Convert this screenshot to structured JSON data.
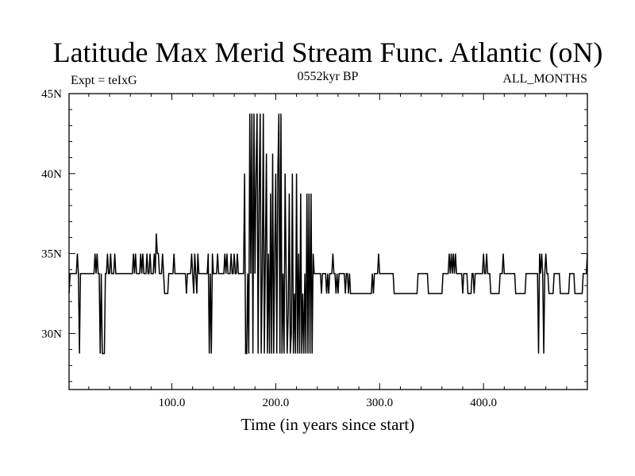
{
  "chart_data": {
    "type": "line",
    "title": "Latitude Max Merid Stream Func. Atlantic (oN)",
    "subtitle_left": "Expt = teIxG",
    "subtitle_center": "0552kyr BP",
    "subtitle_right": "ALL_MONTHS",
    "xlabel": "Time (in years since start)",
    "ylabel": "",
    "xlim": [
      1,
      500
    ],
    "ylim": [
      26.5,
      45
    ],
    "x_ticks": [
      {
        "value": 100,
        "label": "100.0"
      },
      {
        "value": 200,
        "label": "200.0"
      },
      {
        "value": 300,
        "label": "300.0"
      },
      {
        "value": 400,
        "label": "400.0"
      }
    ],
    "y_ticks": [
      {
        "value": 30,
        "label": "30N"
      },
      {
        "value": 35,
        "label": "35N"
      },
      {
        "value": 40,
        "label": "40N"
      },
      {
        "value": 45,
        "label": "45N"
      }
    ],
    "grid": false,
    "legend": "none",
    "line_color": "#000000",
    "series": [
      {
        "x": [
          1,
          2,
          3,
          4,
          5,
          6,
          7,
          8,
          9,
          10,
          11,
          12,
          13,
          14,
          15,
          16,
          17,
          18,
          19,
          20,
          21,
          22,
          23,
          24,
          25,
          26,
          27,
          28,
          29,
          30,
          31,
          32,
          33,
          34,
          35,
          36,
          37,
          38,
          39,
          40,
          41,
          42,
          43,
          44,
          45,
          46,
          47,
          48,
          49,
          50,
          51,
          52,
          53,
          54,
          55,
          56,
          57,
          58,
          59,
          60,
          61,
          62,
          63,
          64,
          65,
          66,
          67,
          68,
          69,
          70,
          71,
          72,
          73,
          74,
          75,
          76,
          77,
          78,
          79,
          80,
          81,
          82,
          83,
          84,
          85,
          86,
          87,
          88,
          89,
          90,
          91,
          92,
          93,
          94,
          95,
          96,
          97,
          98,
          99,
          100,
          101,
          102,
          103,
          104,
          105,
          106,
          107,
          108,
          109,
          110,
          111,
          112,
          113,
          114,
          115,
          116,
          117,
          118,
          119,
          120,
          121,
          122,
          123,
          124,
          125,
          126,
          127,
          128,
          129,
          130,
          131,
          132,
          133,
          134,
          135,
          136,
          137,
          138,
          139,
          140,
          141,
          142,
          143,
          144,
          145,
          146,
          147,
          148,
          149,
          150,
          151,
          152,
          153,
          154,
          155,
          156,
          157,
          158,
          159,
          160,
          161,
          162,
          163,
          164,
          165,
          166,
          167,
          168,
          169,
          170,
          171,
          172,
          173,
          174,
          175,
          176,
          177,
          178,
          179,
          180,
          181,
          182,
          183,
          184,
          185,
          186,
          187,
          188,
          189,
          190,
          191,
          192,
          193,
          194,
          195,
          196,
          197,
          198,
          199,
          200,
          201,
          202,
          203,
          204,
          205,
          206,
          207,
          208,
          209,
          210,
          211,
          212,
          213,
          214,
          215,
          216,
          217,
          218,
          219,
          220,
          221,
          222,
          223,
          224,
          225,
          226,
          227,
          228,
          229,
          230,
          231,
          232,
          233,
          234,
          235,
          236,
          237,
          238,
          239,
          240,
          241,
          242,
          243,
          244,
          245,
          246,
          247,
          248,
          249,
          250,
          251,
          252,
          253,
          254,
          255,
          256,
          257,
          258,
          259,
          260,
          261,
          262,
          263,
          264,
          265,
          266,
          267,
          268,
          269,
          270,
          271,
          272,
          273,
          274,
          275,
          276,
          277,
          278,
          279,
          280,
          281,
          282,
          283,
          284,
          285,
          286,
          287,
          288,
          289,
          290,
          291,
          292,
          293,
          294,
          295,
          296,
          297,
          298,
          299,
          300,
          301,
          302,
          303,
          304,
          305,
          306,
          307,
          308,
          309,
          310,
          311,
          312,
          313,
          314,
          315,
          316,
          317,
          318,
          319,
          320,
          321,
          322,
          323,
          324,
          325,
          326,
          327,
          328,
          329,
          330,
          331,
          332,
          333,
          334,
          335,
          336,
          337,
          338,
          339,
          340,
          341,
          342,
          343,
          344,
          345,
          346,
          347,
          348,
          349,
          350,
          351,
          352,
          353,
          354,
          355,
          356,
          357,
          358,
          359,
          360,
          361,
          362,
          363,
          364,
          365,
          366,
          367,
          368,
          369,
          370,
          371,
          372,
          373,
          374,
          375,
          376,
          377,
          378,
          379,
          380,
          381,
          382,
          383,
          384,
          385,
          386,
          387,
          388,
          389,
          390,
          391,
          392,
          393,
          394,
          395,
          396,
          397,
          398,
          399,
          400,
          401,
          402,
          403,
          404,
          405,
          406,
          407,
          408,
          409,
          410,
          411,
          412,
          413,
          414,
          415,
          416,
          417,
          418,
          419,
          420,
          421,
          422,
          423,
          424,
          425,
          426,
          427,
          428,
          429,
          430,
          431,
          432,
          433,
          434,
          435,
          436,
          437,
          438,
          439,
          440,
          441,
          442,
          443,
          444,
          445,
          446,
          447,
          448,
          449,
          450,
          451,
          452,
          453,
          454,
          455,
          456,
          457,
          458,
          459,
          460,
          461,
          462,
          463,
          464,
          465,
          466,
          467,
          468,
          469,
          470,
          471,
          472,
          473,
          474,
          475,
          476,
          477,
          478,
          479,
          480,
          481,
          482,
          483,
          484,
          485,
          486,
          487,
          488,
          489,
          490,
          491,
          492,
          493,
          494,
          495,
          496,
          497,
          498,
          499,
          500
        ],
        "y": [
          32.5,
          33.75,
          33.75,
          33.75,
          33.75,
          33.75,
          33.75,
          33.75,
          35,
          33.75,
          28.75,
          33.75,
          33.75,
          33.75,
          33.75,
          33.75,
          33.75,
          33.75,
          33.75,
          33.75,
          33.75,
          33.75,
          33.75,
          33.75,
          33.75,
          35,
          33.75,
          35,
          33.75,
          33.75,
          28.75,
          33.75,
          28.75,
          28.75,
          28.75,
          33.75,
          33.75,
          35,
          33.75,
          33.75,
          35,
          33.75,
          33.75,
          33.75,
          35,
          33.75,
          33.75,
          33.75,
          33.75,
          33.75,
          33.75,
          33.75,
          33.75,
          33.75,
          33.75,
          33.75,
          33.75,
          33.75,
          33.75,
          33.75,
          33.75,
          33.75,
          35,
          33.75,
          35,
          33.75,
          33.75,
          33.75,
          33.75,
          35,
          33.75,
          35,
          33.75,
          33.75,
          33.75,
          35,
          33.75,
          33.75,
          35,
          33.75,
          33.75,
          33.75,
          35,
          33.75,
          36.25,
          35,
          35,
          33.75,
          33.75,
          33.75,
          35,
          33.75,
          32.5,
          32.5,
          32.5,
          32.5,
          33.75,
          33.75,
          33.75,
          33.75,
          33.75,
          35,
          33.75,
          33.75,
          33.75,
          33.75,
          33.75,
          33.75,
          33.75,
          33.75,
          33.75,
          33.75,
          33.75,
          32.5,
          33.75,
          33.75,
          33.75,
          33.75,
          35,
          33.75,
          32.5,
          35,
          33.75,
          32.5,
          35,
          33.75,
          33.75,
          33.75,
          33.75,
          33.75,
          33.75,
          33.75,
          33.75,
          33.75,
          35,
          28.75,
          33.75,
          28.75,
          35,
          33.75,
          33.75,
          33.75,
          33.75,
          35,
          33.75,
          33.75,
          33.75,
          33.75,
          33.75,
          33.75,
          35,
          33.75,
          35,
          33.75,
          33.75,
          33.75,
          35,
          33.75,
          33.75,
          35,
          33.75,
          33.75,
          35,
          33.75,
          33.75,
          33.75,
          33.75,
          33.75,
          33.75,
          40,
          28.75,
          28.75,
          33.75,
          28.75,
          43.75,
          33.75,
          43.75,
          28.75,
          43.75,
          33.75,
          40,
          43.75,
          28.75,
          38.75,
          43.75,
          28.75,
          33.75,
          43.75,
          28.75,
          35,
          41.25,
          28.75,
          35,
          28.75,
          38.75,
          28.75,
          41.25,
          28.75,
          35,
          40,
          28.75,
          40,
          43.75,
          28.75,
          43.75,
          28.75,
          33.75,
          28.75,
          40,
          33.75,
          28.75,
          31.25,
          38.75,
          28.75,
          30,
          40,
          28.75,
          32.5,
          28.75,
          40,
          28.75,
          35,
          28.75,
          38.75,
          28.75,
          32.5,
          28.75,
          33.75,
          28.75,
          38.75,
          28.75,
          38.75,
          28.75,
          38.75,
          28.75,
          35,
          33.75,
          33.75,
          33.75,
          33.75,
          33.75,
          33.75,
          33.75,
          32.5,
          33.75,
          33.75,
          33.75,
          33.75,
          32.5,
          33.75,
          32.5,
          33.75,
          33.75,
          33.75,
          35,
          33.75,
          33.75,
          32.5,
          33.75,
          32.5,
          33.75,
          33.75,
          33.75,
          33.75,
          33.75,
          33.75,
          32.5,
          33.75,
          33.75,
          32.5,
          33.75,
          32.5,
          32.5,
          32.5,
          32.5,
          32.5,
          32.5,
          32.5,
          32.5,
          32.5,
          32.5,
          32.5,
          32.5,
          32.5,
          32.5,
          32.5,
          32.5,
          32.5,
          32.5,
          32.5,
          32.5,
          32.5,
          33.75,
          32.5,
          33.75,
          33.75,
          33.75,
          33.75,
          35,
          33.75,
          33.75,
          33.75,
          33.75,
          33.75,
          33.75,
          33.75,
          33.75,
          33.75,
          33.75,
          33.75,
          33.75,
          33.75,
          33.75,
          32.5,
          32.5,
          32.5,
          32.5,
          32.5,
          32.5,
          32.5,
          32.5,
          32.5,
          32.5,
          32.5,
          32.5,
          32.5,
          32.5,
          32.5,
          32.5,
          32.5,
          32.5,
          32.5,
          32.5,
          32.5,
          32.5,
          32.5,
          33.75,
          33.75,
          33.75,
          33.75,
          33.75,
          33.75,
          33.75,
          33.75,
          33.75,
          33.75,
          32.5,
          32.5,
          32.5,
          32.5,
          32.5,
          32.5,
          32.5,
          32.5,
          32.5,
          32.5,
          32.5,
          32.5,
          32.5,
          32.5,
          33.75,
          33.75,
          33.75,
          33.75,
          33.75,
          33.75,
          35,
          33.75,
          35,
          33.75,
          35,
          33.75,
          35,
          33.75,
          33.75,
          33.75,
          33.75,
          33.75,
          33.75,
          32.5,
          33.75,
          33.75,
          33.75,
          33.75,
          32.5,
          32.5,
          32.5,
          32.5,
          33.75,
          33.75,
          32.5,
          33.75,
          33.75,
          33.75,
          33.75,
          33.75,
          33.75,
          33.75,
          33.75,
          35,
          33.75,
          33.75,
          35,
          33.75,
          33.75,
          33.75,
          32.5,
          32.5,
          32.5,
          32.5,
          32.5,
          32.5,
          32.5,
          32.5,
          32.5,
          33.75,
          33.75,
          33.75,
          35,
          33.75,
          33.75,
          33.75,
          33.75,
          33.75,
          33.75,
          33.75,
          33.75,
          33.75,
          33.75,
          33.75,
          32.5,
          32.5,
          32.5,
          32.5,
          32.5,
          32.5,
          32.5,
          32.5,
          32.5,
          32.5,
          33.75,
          33.75,
          33.75,
          33.75,
          33.75,
          33.75,
          33.75,
          33.75,
          33.75,
          33.75,
          33.75,
          33.75,
          28.75,
          35,
          33.75,
          35,
          33.75,
          28.75,
          33.75,
          35,
          33.75,
          33.75,
          32.5,
          32.5,
          32.5,
          32.5,
          32.5,
          33.75,
          33.75,
          33.75,
          33.75,
          33.75,
          33.75,
          32.5,
          32.5,
          32.5,
          32.5,
          32.5,
          32.5,
          32.5,
          32.5,
          32.5,
          33.75,
          33.75,
          33.75,
          33.75,
          33.75,
          32.5,
          32.5,
          32.5,
          32.5,
          32.5,
          32.5,
          32.5,
          32.5,
          33.75,
          33.75,
          33.75,
          33.75,
          35
        ]
      }
    ]
  }
}
